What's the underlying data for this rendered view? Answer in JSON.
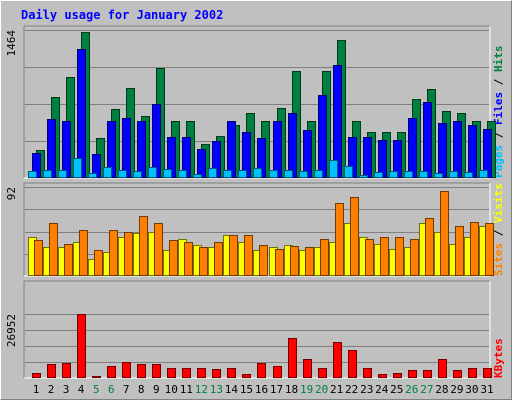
{
  "chart_data": {
    "type": "bar",
    "title": "Daily usage for January 2002",
    "categories": [
      "1",
      "2",
      "3",
      "4",
      "5",
      "6",
      "7",
      "8",
      "9",
      "10",
      "11",
      "12",
      "13",
      "14",
      "15",
      "16",
      "17",
      "18",
      "19",
      "20",
      "21",
      "22",
      "23",
      "24",
      "25",
      "26",
      "27",
      "28",
      "29",
      "30",
      "31"
    ],
    "weekend_days": [
      "5",
      "6",
      "12",
      "13",
      "19",
      "20",
      "26",
      "27"
    ],
    "panels": [
      {
        "id": "top",
        "max_label": "1464",
        "ymax": 1464,
        "legend": [
          {
            "text": "Pages",
            "color": "#00c0ff"
          },
          {
            "text": " / ",
            "color": "#000000"
          },
          {
            "text": "Files",
            "color": "#0000ff"
          },
          {
            "text": " / ",
            "color": "#000000"
          },
          {
            "text": "Hits",
            "color": "#008040"
          }
        ],
        "series": [
          {
            "name": "Hits",
            "color": "#008040",
            "offset": 8,
            "values": [
              280,
              803,
              1000,
              1440,
              400,
              684,
              892,
              615,
              1090,
              560,
              560,
              334,
              414,
              520,
              640,
              560,
              697,
              1054,
              560,
              1054,
              1364,
              560,
              457,
              457,
              457,
              780,
              876,
              666,
              640,
              560,
              560
            ]
          },
          {
            "name": "Files",
            "color": "#0000ff",
            "offset": 4,
            "values": [
              246,
              583,
              560,
              1280,
              240,
              560,
              592,
              563,
              736,
              410,
              410,
              290,
              366,
              560,
              457,
              392,
              560,
              640,
              470,
              820,
              1120,
              410,
              410,
              375,
              375,
              590,
              756,
              540,
              560,
              520,
              480
            ]
          },
          {
            "name": "Pages",
            "color": "#00c0ff",
            "offset": 0,
            "values": [
              65,
              75,
              80,
              200,
              50,
              110,
              80,
              65,
              110,
              90,
              80,
              40,
              100,
              80,
              80,
              100,
              80,
              80,
              70,
              80,
              180,
              120,
              30,
              60,
              65,
              70,
              70,
              50,
              65,
              60,
              80
            ]
          }
        ]
      },
      {
        "id": "mid",
        "max_label": "92",
        "ymax": 92,
        "legend": [
          {
            "text": "Sites",
            "color": "#ff8000"
          },
          {
            "text": " / ",
            "color": "#000000"
          },
          {
            "text": "Visits",
            "color": "#ffff00"
          }
        ],
        "series": [
          {
            "name": "Visits",
            "color": "#ffff00",
            "offset": 0,
            "values": [
              40,
              30,
              30,
              35,
              18,
              25,
              40,
              44,
              45,
              27,
              38,
              32,
              30,
              42,
              35,
              27,
              30,
              32,
              27,
              30,
              35,
              55,
              40,
              33,
              28,
              30,
              55,
              45,
              33,
              40,
              52
            ]
          },
          {
            "name": "Sites",
            "color": "#ff8000",
            "offset": 6,
            "values": [
              37,
              55,
              33,
              48,
              27,
              48,
              45,
              62,
              55,
              37,
              35,
              30,
              35,
              42,
              42,
              32,
              28,
              31,
              30,
              38,
              75,
              82,
              38,
              40,
              40,
              38,
              60,
              88,
              52,
              56,
              55
            ]
          }
        ]
      },
      {
        "id": "bot",
        "max_label": "26952",
        "ymax": 26952,
        "legend": [
          {
            "text": "KBytes",
            "color": "#ff0000"
          }
        ],
        "series": [
          {
            "name": "KBytes",
            "color": "#ff0000",
            "offset": 4,
            "values": [
              2000,
              5800,
              6500,
              26952,
              1000,
              5000,
              6800,
              6000,
              6000,
              4400,
              4400,
              4300,
              4000,
              4300,
              1800,
              6500,
              5000,
              17000,
              8000,
              4300,
              15000,
              11700,
              4400,
              1700,
              2000,
              3300,
              3400,
              7800,
              3300,
              4400,
              4400
            ]
          }
        ]
      }
    ]
  }
}
